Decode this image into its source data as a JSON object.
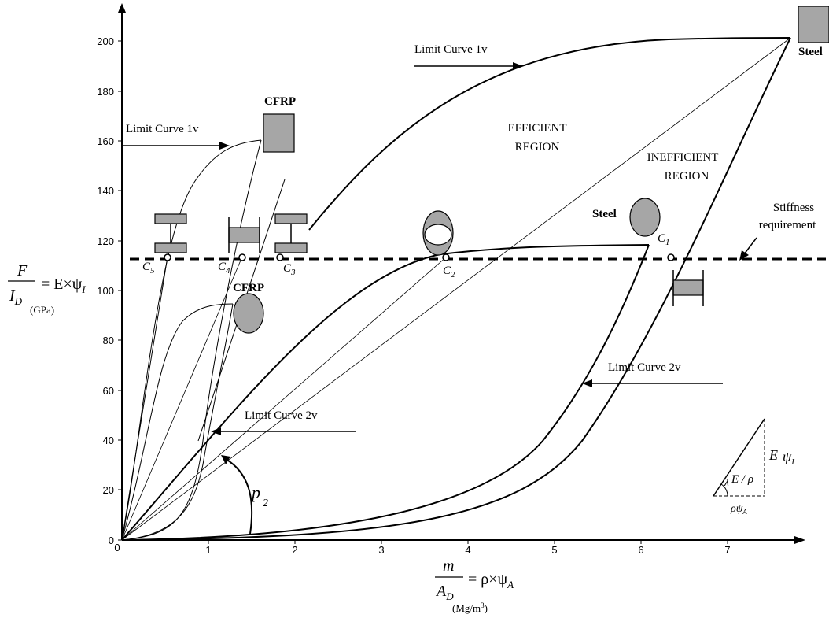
{
  "x_axis": {
    "ticks": [
      "0",
      "1",
      "2",
      "3",
      "4",
      "5",
      "6",
      "7"
    ],
    "label_num": "m",
    "label_den": "A",
    "label_den_sub": "D",
    "label_rhs": "= ρ×ψ",
    "label_rhs_sub": "A",
    "unit_pre": "(Mg/m",
    "unit_sup": "3",
    "unit_post": ")"
  },
  "y_axis": {
    "ticks": [
      "0",
      "20",
      "40",
      "60",
      "80",
      "100",
      "120",
      "140",
      "160",
      "180",
      "200"
    ],
    "label_num": "F",
    "label_den": "I",
    "label_den_sub": "D",
    "label_rhs": "= E×ψ",
    "label_rhs_sub": "I",
    "unit": "(GPa)"
  },
  "labels": {
    "limit_1v_left": "Limit Curve 1v",
    "limit_1v_top": "Limit Curve 1v",
    "limit_2v_left": "Limit Curve 2v",
    "limit_2v_right": "Limit Curve 2v",
    "efficient_1": "EFFICIENT",
    "efficient_2": "REGION",
    "inefficient_1": "INEFFICIENT",
    "inefficient_2": "REGION",
    "stiffness_1": "Stiffness",
    "stiffness_2": "requirement",
    "cfrp_top": "CFRP",
    "cfrp_mid": "CFRP",
    "steel_mid": "Steel",
    "steel_top": "Steel",
    "p2": "p",
    "p2_sub": "2"
  },
  "points": [
    {
      "letter": "C",
      "sub": "1"
    },
    {
      "letter": "C",
      "sub": "2"
    },
    {
      "letter": "C",
      "sub": "3"
    },
    {
      "letter": "C",
      "sub": "4"
    },
    {
      "letter": "C",
      "sub": "5"
    }
  ],
  "inset": {
    "e_label": "E",
    "psi_i": "ψ",
    "psi_i_sub": "I",
    "ratio": "E / ρ",
    "lambda": "λ",
    "rho_psi": "ρψ",
    "rho_psi_sub": "A"
  },
  "colors": {
    "shape_fill": "#a6a6a6",
    "line": "#000000"
  }
}
